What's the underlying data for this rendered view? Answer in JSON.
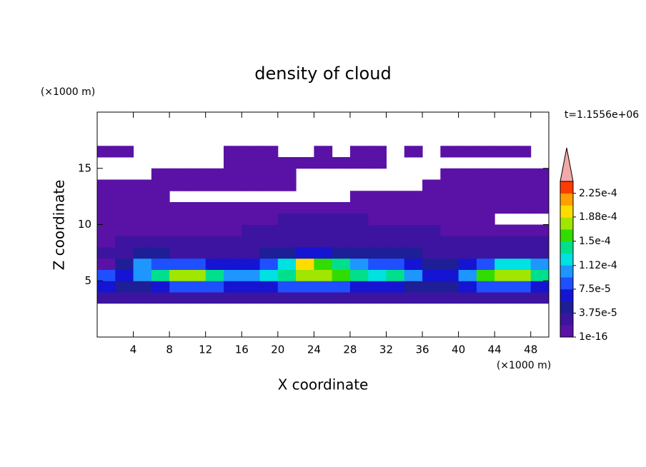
{
  "chart_data": {
    "type": "contour",
    "title": "density of cloud",
    "x_label": "X coordinate",
    "y_label": "Z coordinate",
    "x_unit": "(×1000 m)",
    "y_unit": "(×1000 m)",
    "annotation": "t=1.1556e+06",
    "xlim": [
      0,
      50
    ],
    "ylim": [
      0,
      20
    ],
    "xticks": [
      4,
      8,
      12,
      16,
      20,
      24,
      28,
      32,
      36,
      40,
      44,
      48
    ],
    "yticks": [
      5,
      10,
      15
    ],
    "x": [
      1,
      3,
      5,
      7,
      9,
      11,
      13,
      15,
      17,
      19,
      21,
      23,
      25,
      27,
      29,
      31,
      33,
      35,
      37,
      39,
      41,
      43,
      45,
      47,
      49
    ],
    "z": [
      3.5,
      4.5,
      5.5,
      6.5,
      7.5,
      8.5,
      9.5,
      10.5,
      11.5,
      12.5,
      13.5,
      14.5,
      15.5,
      16.5
    ],
    "values": [
      [
        3e-05,
        3e-05,
        2.5e-05,
        3e-05,
        3e-05,
        3e-05,
        3e-05,
        3e-05,
        3e-05,
        3e-05,
        3e-05,
        3e-05,
        3e-05,
        3e-05,
        3e-05,
        3e-05,
        3e-05,
        2.5e-05,
        2.5e-05,
        2.5e-05,
        3e-05,
        3e-05,
        3e-05,
        3e-05,
        3e-05
      ],
      [
        6e-05,
        5e-05,
        4e-05,
        7e-05,
        8e-05,
        8e-05,
        8e-05,
        7e-05,
        6e-05,
        7e-05,
        8e-05,
        9e-05,
        9e-05,
        8e-05,
        7e-05,
        7e-05,
        7e-05,
        5e-05,
        4e-05,
        4e-05,
        7e-05,
        8e-05,
        8e-05,
        8e-05,
        7e-05
      ],
      [
        9e-05,
        6e-05,
        0.00011,
        0.00015,
        0.00017,
        0.00017,
        0.00015,
        0.00011,
        0.0001,
        0.00012,
        0.00014,
        0.00018,
        0.00017,
        0.00016,
        0.00015,
        0.00013,
        0.00014,
        0.0001,
        7e-05,
        6e-05,
        0.0001,
        0.00016,
        0.00018,
        0.00018,
        0.00014
      ],
      [
        1e-05,
        4e-05,
        0.0001,
        8e-05,
        9e-05,
        8e-05,
        7e-05,
        6e-05,
        6e-05,
        8e-05,
        0.00012,
        0.0002,
        0.00016,
        0.00015,
        0.00011,
        9e-05,
        8e-05,
        6e-05,
        5e-05,
        4e-05,
        6e-05,
        9e-05,
        0.00012,
        0.00013,
        0.0001
      ],
      [
        2e-05,
        3e-05,
        5e-05,
        4e-05,
        3.5e-05,
        3e-05,
        3e-05,
        3e-05,
        3.5e-05,
        4e-05,
        5e-05,
        6e-05,
        6e-05,
        5.5e-05,
        5e-05,
        4.5e-05,
        4e-05,
        4e-05,
        3.5e-05,
        3e-05,
        3e-05,
        3e-05,
        3.5e-05,
        3.5e-05,
        3e-05
      ],
      [
        1.5e-05,
        2e-05,
        2.5e-05,
        2.5e-05,
        2.5e-05,
        2.5e-05,
        2.5e-05,
        2.5e-05,
        2.5e-05,
        3e-05,
        3e-05,
        3e-05,
        3.5e-05,
        3e-05,
        3e-05,
        3e-05,
        3e-05,
        3e-05,
        2.5e-05,
        2.5e-05,
        2.5e-05,
        2.5e-05,
        2.5e-05,
        2e-05,
        2e-05
      ],
      [
        1e-05,
        1.5e-05,
        1.5e-05,
        1.5e-05,
        1e-05,
        1e-05,
        1.5e-05,
        1.5e-05,
        2e-05,
        2e-05,
        2e-05,
        2.5e-05,
        2.5e-05,
        2.5e-05,
        2e-05,
        2e-05,
        2e-05,
        2e-05,
        2e-05,
        1.5e-05,
        1.5e-05,
        1e-05,
        1e-05,
        1e-05,
        1e-05
      ],
      [
        1e-05,
        1e-05,
        1e-05,
        1e-05,
        1e-05,
        1e-05,
        1e-05,
        1e-05,
        1e-05,
        1.5e-05,
        2e-05,
        2e-05,
        2e-05,
        2e-05,
        2e-05,
        1.5e-05,
        1.5e-05,
        1.5e-05,
        1e-05,
        1e-05,
        1e-05,
        1e-05,
        null,
        null,
        null
      ],
      [
        1e-05,
        1e-05,
        1e-05,
        1e-05,
        1e-05,
        1e-05,
        1e-05,
        1e-05,
        1e-05,
        1e-05,
        1e-05,
        1e-05,
        1e-05,
        1e-05,
        1e-05,
        1e-05,
        1e-05,
        1e-05,
        1e-05,
        1e-05,
        1e-05,
        1e-05,
        1e-05,
        1e-05,
        1e-05
      ],
      [
        1e-05,
        1e-05,
        1e-05,
        1e-05,
        null,
        null,
        null,
        null,
        null,
        null,
        null,
        null,
        null,
        null,
        1e-05,
        1e-05,
        1e-05,
        1e-05,
        1e-05,
        1e-05,
        1e-05,
        1e-05,
        1e-05,
        1e-05,
        1e-05
      ],
      [
        1e-05,
        1e-05,
        1e-05,
        1e-05,
        1e-05,
        1e-05,
        1e-05,
        1e-05,
        1e-05,
        1e-05,
        1e-05,
        null,
        null,
        null,
        null,
        null,
        null,
        null,
        1e-05,
        1e-05,
        1e-05,
        1e-05,
        1e-05,
        1e-05,
        1e-05
      ],
      [
        null,
        null,
        null,
        1e-05,
        1e-05,
        1e-05,
        1e-05,
        1e-05,
        1e-05,
        1e-05,
        1e-05,
        null,
        null,
        null,
        null,
        null,
        null,
        null,
        null,
        1e-05,
        1e-05,
        1e-05,
        1e-05,
        1e-05,
        1e-05
      ],
      [
        null,
        null,
        null,
        null,
        null,
        null,
        null,
        1e-05,
        1e-05,
        1e-05,
        1e-05,
        1e-05,
        1e-05,
        1e-05,
        1e-05,
        1e-05,
        null,
        null,
        null,
        null,
        null,
        null,
        null,
        null,
        null
      ],
      [
        1e-05,
        1e-05,
        null,
        null,
        null,
        null,
        null,
        1e-05,
        1e-05,
        1e-05,
        null,
        null,
        1e-05,
        null,
        1e-05,
        1e-05,
        null,
        1e-05,
        null,
        1e-05,
        1e-05,
        1e-05,
        1e-05,
        1e-05,
        null
      ]
    ],
    "clim": [
      1e-16,
      0.00024375
    ],
    "colors": [
      "#5a12a6",
      "#3c14a0",
      "#1e1e96",
      "#1414d2",
      "#1e50ff",
      "#1e96ff",
      "#00e1e1",
      "#00e08c",
      "#32dc00",
      "#a0e600",
      "#ffdc00",
      "#ffa000",
      "#ff3c00"
    ],
    "extend_color": "#f4a8a8",
    "colorbar_ticks": [
      {
        "value": 1e-16,
        "label": "1e-16"
      },
      {
        "value": 3.75e-05,
        "label": "3.75e-5"
      },
      {
        "value": 7.5e-05,
        "label": "7.5e-5"
      },
      {
        "value": 0.000112,
        "label": "1.12e-4"
      },
      {
        "value": 0.00015,
        "label": "1.5e-4"
      },
      {
        "value": 0.000188,
        "label": "1.88e-4"
      },
      {
        "value": 0.000225,
        "label": "2.25e-4"
      }
    ]
  }
}
